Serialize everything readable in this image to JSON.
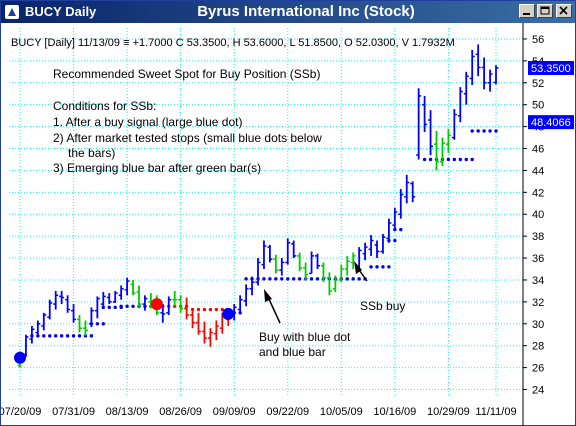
{
  "window": {
    "tab_title": "BUCY Daily",
    "title": "Byrus International Inc (Stock)",
    "buttons": [
      "minimize-icon",
      "maximize-icon",
      "close-icon"
    ]
  },
  "header": {
    "info": "BUCY [Daily] 11/13/09 ≡ +1.7000 C 53.3500, H 53.6000, L 51.8500, O 52.0300, V 1.7932M"
  },
  "annotations": {
    "heading": "Recommended Sweet Spot for Buy Position (SSb)",
    "conditions_title": "Conditions for SSb:",
    "condition_1": "1. After a buy signal (large blue dot)",
    "condition_2a": "2) After market tested stops (small blue dots below",
    "condition_2b": "the bars)",
    "condition_3": "3) Emerging blue bar after green bar(s)",
    "callout_1a": "Buy with blue dot",
    "callout_1b": "and blue bar",
    "callout_2": "SSb buy"
  },
  "chart_data": {
    "type": "ohlc",
    "y_ticks": [
      24,
      26,
      28,
      30,
      32,
      34,
      36,
      38,
      40,
      42,
      44,
      46,
      48,
      50,
      52,
      54,
      56
    ],
    "ylim": [
      23.5,
      57
    ],
    "x_ticks": [
      "07/20/09",
      "07/31/09",
      "08/13/09",
      "08/26/09",
      "09/09/09",
      "09/22/09",
      "10/05/09",
      "10/16/09",
      "10/29/09",
      "11/11/09"
    ],
    "last_price": "53.3500",
    "stop_value": "48.4066",
    "colors": {
      "up": "#0000ff",
      "green": "#00cc00",
      "red": "#ff0000",
      "price_label": "#0000ff",
      "grid": "#00ffff"
    },
    "bars": [
      {
        "h": 27.5,
        "l": 26.0,
        "o": 26.2,
        "c": 27.2,
        "col": "g"
      },
      {
        "h": 29.0,
        "l": 27.0,
        "o": 27.2,
        "c": 28.8,
        "col": "b"
      },
      {
        "h": 29.8,
        "l": 28.2,
        "o": 28.6,
        "c": 29.5,
        "col": "b"
      },
      {
        "h": 30.3,
        "l": 28.9,
        "o": 29.2,
        "c": 30.0,
        "col": "b"
      },
      {
        "h": 31.0,
        "l": 29.4,
        "o": 29.8,
        "c": 30.8,
        "col": "b"
      },
      {
        "h": 32.2,
        "l": 30.4,
        "o": 30.6,
        "c": 31.9,
        "col": "b"
      },
      {
        "h": 33.0,
        "l": 31.3,
        "o": 31.8,
        "c": 32.6,
        "col": "b"
      },
      {
        "h": 33.0,
        "l": 31.8,
        "o": 32.5,
        "c": 32.4,
        "col": "b"
      },
      {
        "h": 32.6,
        "l": 31.0,
        "o": 32.2,
        "c": 31.3,
        "col": "b"
      },
      {
        "h": 31.8,
        "l": 30.1,
        "o": 31.2,
        "c": 30.4,
        "col": "b"
      },
      {
        "h": 30.8,
        "l": 29.2,
        "o": 30.4,
        "c": 29.6,
        "col": "g"
      },
      {
        "h": 30.3,
        "l": 28.9,
        "o": 29.6,
        "c": 29.4,
        "col": "g"
      },
      {
        "h": 31.5,
        "l": 29.7,
        "o": 30.0,
        "c": 31.2,
        "col": "b"
      },
      {
        "h": 32.5,
        "l": 30.5,
        "o": 31.2,
        "c": 32.3,
        "col": "b"
      },
      {
        "h": 32.9,
        "l": 31.5,
        "o": 31.8,
        "c": 32.5,
        "col": "b"
      },
      {
        "h": 32.8,
        "l": 31.8,
        "o": 32.4,
        "c": 32.0,
        "col": "b"
      },
      {
        "h": 33.0,
        "l": 31.9,
        "o": 32.0,
        "c": 32.8,
        "col": "b"
      },
      {
        "h": 33.5,
        "l": 32.2,
        "o": 32.6,
        "c": 33.2,
        "col": "b"
      },
      {
        "h": 34.2,
        "l": 32.6,
        "o": 33.1,
        "c": 33.9,
        "col": "b"
      },
      {
        "h": 34.0,
        "l": 32.6,
        "o": 33.6,
        "c": 32.8,
        "col": "g"
      },
      {
        "h": 33.5,
        "l": 31.5,
        "o": 32.9,
        "c": 31.8,
        "col": "g"
      },
      {
        "h": 32.6,
        "l": 31.2,
        "o": 31.8,
        "c": 32.3,
        "col": "b"
      },
      {
        "h": 32.8,
        "l": 31.4,
        "o": 32.0,
        "c": 31.8,
        "col": "g"
      },
      {
        "h": 32.6,
        "l": 30.8,
        "o": 31.9,
        "c": 31.0,
        "col": "g"
      },
      {
        "h": 31.8,
        "l": 30.1,
        "o": 31.0,
        "c": 30.9,
        "col": "b"
      },
      {
        "h": 32.5,
        "l": 30.8,
        "o": 31.0,
        "c": 32.2,
        "col": "b"
      },
      {
        "h": 33.0,
        "l": 31.6,
        "o": 32.2,
        "c": 32.2,
        "col": "g"
      },
      {
        "h": 32.6,
        "l": 31.0,
        "o": 32.2,
        "c": 31.4,
        "col": "g"
      },
      {
        "h": 32.4,
        "l": 30.4,
        "o": 31.4,
        "c": 30.8,
        "col": "r"
      },
      {
        "h": 31.4,
        "l": 29.6,
        "o": 30.8,
        "c": 30.1,
        "col": "r"
      },
      {
        "h": 31.0,
        "l": 29.0,
        "o": 30.1,
        "c": 29.3,
        "col": "r"
      },
      {
        "h": 30.2,
        "l": 28.2,
        "o": 29.3,
        "c": 28.7,
        "col": "r"
      },
      {
        "h": 29.6,
        "l": 27.9,
        "o": 28.7,
        "c": 29.2,
        "col": "r"
      },
      {
        "h": 30.3,
        "l": 28.5,
        "o": 29.1,
        "c": 29.8,
        "col": "r"
      },
      {
        "h": 31.0,
        "l": 29.1,
        "o": 29.6,
        "c": 30.6,
        "col": "r"
      },
      {
        "h": 31.4,
        "l": 29.8,
        "o": 30.4,
        "c": 31.1,
        "col": "r"
      },
      {
        "h": 31.8,
        "l": 30.3,
        "o": 30.9,
        "c": 31.5,
        "col": "b"
      },
      {
        "h": 32.6,
        "l": 30.9,
        "o": 31.3,
        "c": 32.2,
        "col": "b"
      },
      {
        "h": 33.6,
        "l": 31.6,
        "o": 32.1,
        "c": 33.2,
        "col": "b"
      },
      {
        "h": 34.3,
        "l": 32.6,
        "o": 33.2,
        "c": 33.8,
        "col": "b"
      },
      {
        "h": 36.0,
        "l": 33.5,
        "o": 33.8,
        "c": 35.6,
        "col": "b"
      },
      {
        "h": 37.6,
        "l": 35.0,
        "o": 35.4,
        "c": 37.1,
        "col": "b"
      },
      {
        "h": 37.2,
        "l": 35.6,
        "o": 37.0,
        "c": 35.9,
        "col": "b"
      },
      {
        "h": 36.3,
        "l": 34.6,
        "o": 35.9,
        "c": 34.9,
        "col": "g"
      },
      {
        "h": 36.0,
        "l": 34.4,
        "o": 34.9,
        "c": 35.6,
        "col": "b"
      },
      {
        "h": 37.8,
        "l": 35.4,
        "o": 35.6,
        "c": 37.4,
        "col": "b"
      },
      {
        "h": 37.6,
        "l": 36.0,
        "o": 37.3,
        "c": 36.2,
        "col": "b"
      },
      {
        "h": 36.5,
        "l": 34.8,
        "o": 36.2,
        "c": 35.1,
        "col": "g"
      },
      {
        "h": 35.6,
        "l": 34.0,
        "o": 35.1,
        "c": 34.5,
        "col": "g"
      },
      {
        "h": 36.6,
        "l": 34.6,
        "o": 34.6,
        "c": 36.2,
        "col": "b"
      },
      {
        "h": 36.4,
        "l": 35.0,
        "o": 36.2,
        "c": 35.3,
        "col": "b"
      },
      {
        "h": 35.6,
        "l": 33.8,
        "o": 35.3,
        "c": 34.2,
        "col": "g"
      },
      {
        "h": 34.7,
        "l": 32.6,
        "o": 34.2,
        "c": 33.0,
        "col": "g"
      },
      {
        "h": 34.4,
        "l": 32.9,
        "o": 33.2,
        "c": 34.0,
        "col": "g"
      },
      {
        "h": 35.4,
        "l": 33.8,
        "o": 34.0,
        "c": 35.0,
        "col": "g"
      },
      {
        "h": 36.2,
        "l": 34.4,
        "o": 35.0,
        "c": 35.7,
        "col": "g"
      },
      {
        "h": 36.5,
        "l": 35.0,
        "o": 35.6,
        "c": 36.2,
        "col": "g"
      },
      {
        "h": 37.0,
        "l": 35.0,
        "o": 35.2,
        "c": 36.7,
        "col": "b"
      },
      {
        "h": 37.4,
        "l": 35.8,
        "o": 36.4,
        "c": 37.0,
        "col": "b"
      },
      {
        "h": 38.1,
        "l": 36.2,
        "o": 36.8,
        "c": 37.6,
        "col": "b"
      },
      {
        "h": 37.6,
        "l": 36.0,
        "o": 37.2,
        "c": 36.6,
        "col": "b"
      },
      {
        "h": 38.2,
        "l": 36.4,
        "o": 36.6,
        "c": 37.9,
        "col": "b"
      },
      {
        "h": 39.6,
        "l": 37.4,
        "o": 37.8,
        "c": 39.2,
        "col": "b"
      },
      {
        "h": 40.6,
        "l": 38.5,
        "o": 39.0,
        "c": 40.2,
        "col": "b"
      },
      {
        "h": 42.3,
        "l": 39.6,
        "o": 40.0,
        "c": 41.8,
        "col": "b"
      },
      {
        "h": 43.6,
        "l": 41.0,
        "o": 41.6,
        "c": 42.9,
        "col": "b"
      },
      {
        "h": 43.0,
        "l": 41.1,
        "o": 42.8,
        "c": 41.6,
        "col": "b"
      },
      {
        "h": 51.5,
        "l": 45.0,
        "o": 45.4,
        "c": 50.8,
        "col": "b"
      },
      {
        "h": 50.8,
        "l": 47.5,
        "o": 50.0,
        "c": 48.2,
        "col": "b"
      },
      {
        "h": 49.5,
        "l": 45.4,
        "o": 48.6,
        "c": 46.2,
        "col": "b"
      },
      {
        "h": 47.6,
        "l": 44.0,
        "o": 46.4,
        "c": 44.8,
        "col": "g"
      },
      {
        "h": 47.0,
        "l": 44.4,
        "o": 44.8,
        "c": 46.5,
        "col": "g"
      },
      {
        "h": 47.8,
        "l": 45.6,
        "o": 46.4,
        "c": 47.2,
        "col": "g"
      },
      {
        "h": 49.6,
        "l": 46.8,
        "o": 47.0,
        "c": 49.1,
        "col": "b"
      },
      {
        "h": 51.6,
        "l": 48.4,
        "o": 49.0,
        "c": 51.2,
        "col": "b"
      },
      {
        "h": 53.0,
        "l": 50.0,
        "o": 51.0,
        "c": 52.6,
        "col": "b"
      },
      {
        "h": 55.0,
        "l": 51.8,
        "o": 52.4,
        "c": 54.4,
        "col": "b"
      },
      {
        "h": 55.5,
        "l": 52.6,
        "o": 54.6,
        "c": 53.4,
        "col": "b"
      },
      {
        "h": 54.3,
        "l": 51.4,
        "o": 53.4,
        "c": 52.0,
        "col": "b"
      },
      {
        "h": 53.2,
        "l": 51.2,
        "o": 52.0,
        "c": 52.8,
        "col": "b"
      },
      {
        "h": 53.6,
        "l": 51.85,
        "o": 52.03,
        "c": 53.35,
        "col": "b"
      }
    ],
    "stops": [
      {
        "from": 2,
        "to": 12,
        "y": 28.9,
        "col": "b"
      },
      {
        "from": 12,
        "to": 14,
        "y": 30.0,
        "col": "b"
      },
      {
        "from": 14,
        "to": 17,
        "y": 31.5,
        "col": "b"
      },
      {
        "from": 17,
        "to": 23,
        "y": 31.6,
        "col": "b"
      },
      {
        "from": 24,
        "to": 28,
        "y": 31.6,
        "col": "r"
      },
      {
        "from": 29,
        "to": 35,
        "y": 31.3,
        "col": "r"
      },
      {
        "from": 35,
        "to": 37,
        "y": 31.0,
        "col": "b"
      },
      {
        "from": 38,
        "to": 58,
        "y": 34.1,
        "col": "b"
      },
      {
        "from": 59,
        "to": 62,
        "y": 35.2,
        "col": "b"
      },
      {
        "from": 62,
        "to": 63,
        "y": 37.6,
        "col": "b"
      },
      {
        "from": 63,
        "to": 64,
        "y": 38.6,
        "col": "b"
      },
      {
        "from": 68,
        "to": 76,
        "y": 45.0,
        "col": "b"
      },
      {
        "from": 76,
        "to": 80,
        "y": 47.6,
        "col": "b"
      }
    ],
    "signals": [
      {
        "i": 0,
        "y": 26.9,
        "col": "b"
      },
      {
        "i": 23,
        "y": 31.8,
        "col": "r"
      },
      {
        "i": 35,
        "y": 30.9,
        "col": "b"
      }
    ],
    "x_tick_index": [
      0,
      9,
      18,
      27,
      36,
      45,
      54,
      63,
      72,
      80
    ]
  }
}
